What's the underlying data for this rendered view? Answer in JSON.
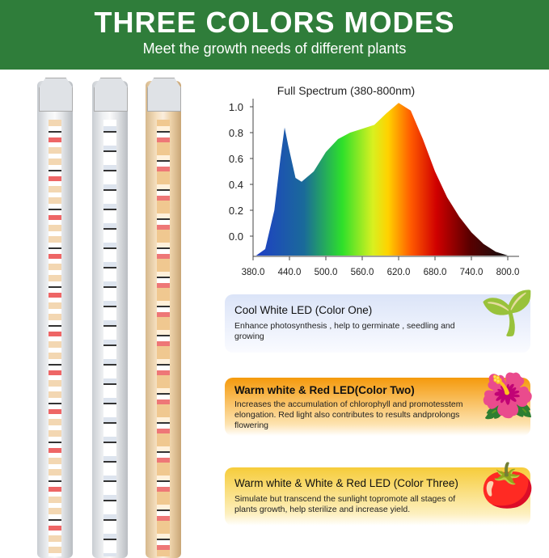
{
  "header": {
    "title": "THREE COLORS MODES",
    "subtitle": "Meet the growth needs of different plants"
  },
  "chart_data": {
    "type": "area",
    "title": "Full Spectrum (380-800nm)",
    "xlabel": "",
    "ylabel": "",
    "xlim": [
      380,
      800
    ],
    "ylim": [
      -0.15,
      1.05
    ],
    "x_ticks": [
      "380.0",
      "440.0",
      "500.0",
      "560.0",
      "620.0",
      "680.0",
      "740.0",
      "800.0"
    ],
    "y_ticks": [
      "1.0",
      "0.8",
      "0.6",
      "0.4",
      "0.2",
      "0.0"
    ],
    "x": [
      385,
      400,
      415,
      425,
      432,
      438,
      450,
      460,
      480,
      500,
      520,
      540,
      560,
      580,
      600,
      620,
      640,
      660,
      680,
      700,
      720,
      740,
      760,
      780,
      800
    ],
    "y": [
      -0.15,
      -0.1,
      0.2,
      0.6,
      0.84,
      0.7,
      0.45,
      0.42,
      0.5,
      0.65,
      0.75,
      0.8,
      0.83,
      0.86,
      0.95,
      1.03,
      0.97,
      0.75,
      0.5,
      0.3,
      0.15,
      0.03,
      -0.06,
      -0.12,
      -0.15
    ],
    "fill": "visible spectrum gradient"
  },
  "modes": [
    {
      "title": "Cool White LED (Color One)",
      "desc": "Enhance photosynthesis , help to germinate , seedling and growing",
      "color": "#dfe6f8",
      "icon": "seedling-icon"
    },
    {
      "title": "Warm white & Red LED(Color Two)",
      "desc": "Increases the accumulation of chlorophyll and promotesstem elongation. Red light also contributes to results andprolongs flowering",
      "color": "#f7a21b",
      "icon": "flower-pot-icon"
    },
    {
      "title": "Warm white & White & Red  LED (Color Three)",
      "desc": "Simulate but transcend the sunlight topromote all stages of plants growth, help sterilize and increase yield.",
      "color": "#f7d24a",
      "icon": "tomato-plant-icon"
    }
  ]
}
